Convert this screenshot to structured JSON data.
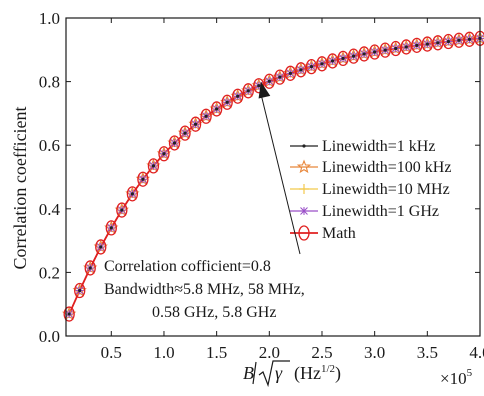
{
  "chart_data": {
    "type": "line",
    "title": "",
    "ylabel": "Correlation coefficient",
    "xlabel_base": "B",
    "xlabel_gamma": "γ",
    "xlabel_unit_open": "(Hz",
    "xlabel_unit_exp": "1/2",
    "xlabel_unit_close": ")",
    "x_multiplier_base": "×10",
    "x_multiplier_exp": "5",
    "xlim": [
      0.07,
      4.0
    ],
    "ylim": [
      0.0,
      1.0
    ],
    "xticks": [
      0.5,
      1.0,
      1.5,
      2.0,
      2.5,
      3.0,
      3.5,
      4.0
    ],
    "xtick_labels": [
      "0.5",
      "1.0",
      "1.5",
      "2.0",
      "2.5",
      "3.0",
      "3.5",
      "4.0"
    ],
    "yticks": [
      0.0,
      0.2,
      0.4,
      0.6,
      0.8,
      1.0
    ],
    "ytick_labels": [
      "0.0",
      "0.2",
      "0.4",
      "0.6",
      "0.8",
      "1.0"
    ],
    "grid": false,
    "legend_position": "center-right",
    "x": [
      0.1,
      0.2,
      0.3,
      0.4,
      0.5,
      0.6,
      0.7,
      0.8,
      0.9,
      1.0,
      1.1,
      1.2,
      1.3,
      1.4,
      1.5,
      1.6,
      1.7,
      1.8,
      1.9,
      2.0,
      2.1,
      2.2,
      2.3,
      2.4,
      2.5,
      2.6,
      2.7,
      2.8,
      2.9,
      3.0,
      3.1,
      3.2,
      3.3,
      3.4,
      3.5,
      3.6,
      3.7,
      3.8,
      3.9,
      4.0
    ],
    "y": [
      0.069,
      0.143,
      0.214,
      0.28,
      0.34,
      0.396,
      0.447,
      0.493,
      0.535,
      0.573,
      0.607,
      0.638,
      0.666,
      0.691,
      0.714,
      0.735,
      0.754,
      0.771,
      0.787,
      0.801,
      0.814,
      0.826,
      0.837,
      0.847,
      0.856,
      0.865,
      0.873,
      0.88,
      0.887,
      0.893,
      0.899,
      0.904,
      0.909,
      0.914,
      0.918,
      0.922,
      0.926,
      0.93,
      0.933,
      0.936
    ],
    "series": [
      {
        "name": "Linewidth=1 kHz",
        "color": "#222222",
        "marker": "dot"
      },
      {
        "name": "Linewidth=100 kHz",
        "color": "#e8863a",
        "marker": "star"
      },
      {
        "name": "Linewidth=10 MHz",
        "color": "#f2c94c",
        "marker": "plus"
      },
      {
        "name": "Linewidth=1 GHz",
        "color": "#9a4fc8",
        "marker": "asterisk"
      },
      {
        "name": "Math",
        "color": "#e02020",
        "marker": "circle"
      }
    ],
    "annotation": {
      "lines": [
        "Correlation cofficient=0.8",
        "Bandwidth≈5.8 MHz, 58 MHz,",
        "0.58 GHz, 5.8 GHz"
      ],
      "arrow_target": {
        "x": 1.92,
        "y": 0.8
      }
    }
  }
}
